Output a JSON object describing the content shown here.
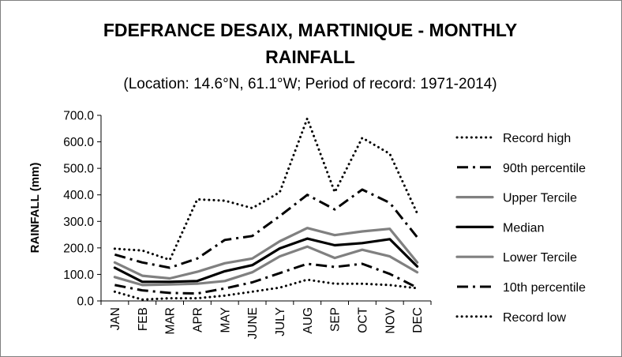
{
  "chart_data": {
    "type": "line",
    "title_lines": [
      "FDEFRANCE DESAIX, MARTINIQUE - MONTHLY",
      "RAINFALL"
    ],
    "subtitle": "(Location: 14.6°N, 61.1°W; Period of record: 1971-2014)",
    "ylabel": "RAINFALL (mm)",
    "xlabel": "",
    "ylim": [
      0,
      700
    ],
    "yticks": [
      0,
      100,
      200,
      300,
      400,
      500,
      600,
      700
    ],
    "ytick_labels": [
      "0.0",
      "100.0",
      "200.0",
      "300.0",
      "400.0",
      "500.0",
      "600.0",
      "700.0"
    ],
    "categories": [
      "JAN",
      "FEB",
      "MAR",
      "APR",
      "MAY",
      "JUNE",
      "JULY",
      "AUG",
      "SEP",
      "OCT",
      "NOV",
      "DEC"
    ],
    "grid": false,
    "legend_position": "right",
    "series": [
      {
        "name": "Record high",
        "style": "dotted",
        "color": "#000000",
        "values": [
          197,
          190,
          155,
          383,
          378,
          350,
          410,
          688,
          410,
          615,
          555,
          330
        ]
      },
      {
        "name": "90th percentile",
        "style": "dashdot",
        "color": "#000000",
        "values": [
          175,
          145,
          125,
          160,
          230,
          245,
          320,
          400,
          345,
          420,
          370,
          240
        ]
      },
      {
        "name": "Upper Tercile",
        "style": "solid",
        "color": "#808080",
        "values": [
          145,
          95,
          85,
          110,
          142,
          160,
          225,
          275,
          248,
          262,
          272,
          145
        ]
      },
      {
        "name": "Median",
        "style": "solid",
        "color": "#000000",
        "values": [
          125,
          72,
          72,
          75,
          112,
          135,
          198,
          235,
          210,
          218,
          233,
          130
        ]
      },
      {
        "name": "Lower Tercile",
        "style": "solid",
        "color": "#808080",
        "values": [
          90,
          60,
          62,
          65,
          75,
          108,
          168,
          205,
          162,
          193,
          168,
          108
        ]
      },
      {
        "name": "10th percentile",
        "style": "dashdot",
        "color": "#000000",
        "values": [
          60,
          40,
          30,
          28,
          47,
          70,
          105,
          140,
          128,
          140,
          102,
          50
        ]
      },
      {
        "name": "Record low",
        "style": "dotted",
        "color": "#000000",
        "values": [
          35,
          5,
          10,
          10,
          20,
          35,
          50,
          80,
          65,
          65,
          60,
          48
        ]
      }
    ]
  }
}
